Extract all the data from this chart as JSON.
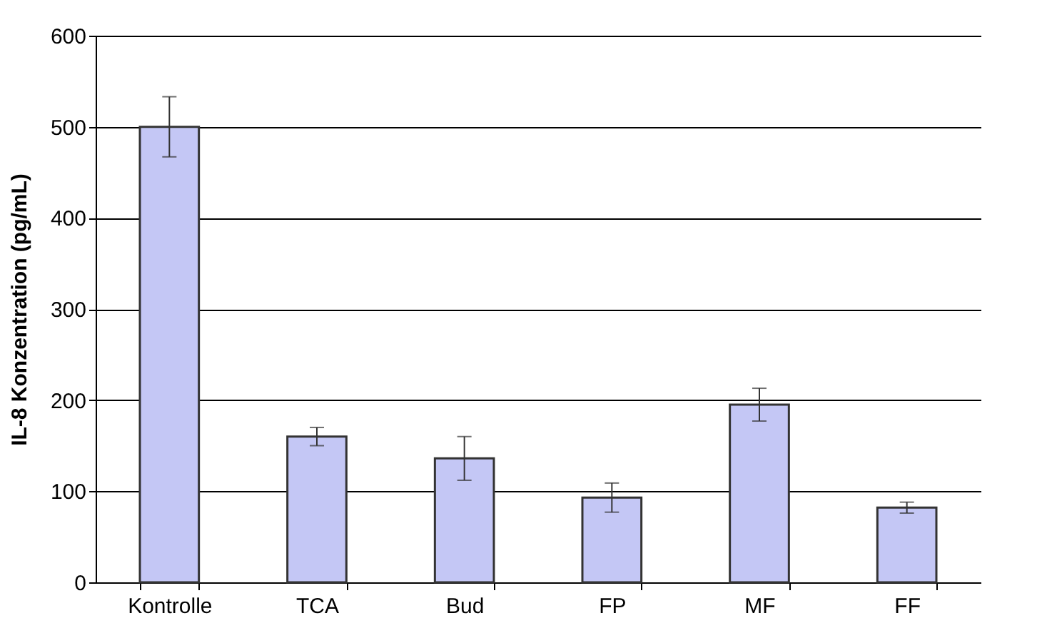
{
  "chart_data": {
    "type": "bar",
    "ylabel": "IL-8 Konzentration (pg/mL)",
    "categories": [
      "Kontrolle",
      "TCA",
      "Bud",
      "FP",
      "MF",
      "FF"
    ],
    "values": [
      500,
      160,
      136,
      93,
      195,
      82
    ],
    "errors": [
      33,
      10,
      24,
      16,
      18,
      6
    ],
    "color": "#c4c7f5",
    "ylim": [
      0,
      600
    ],
    "yticks": [
      0,
      100,
      200,
      300,
      400,
      500,
      600
    ],
    "grid": "y"
  }
}
